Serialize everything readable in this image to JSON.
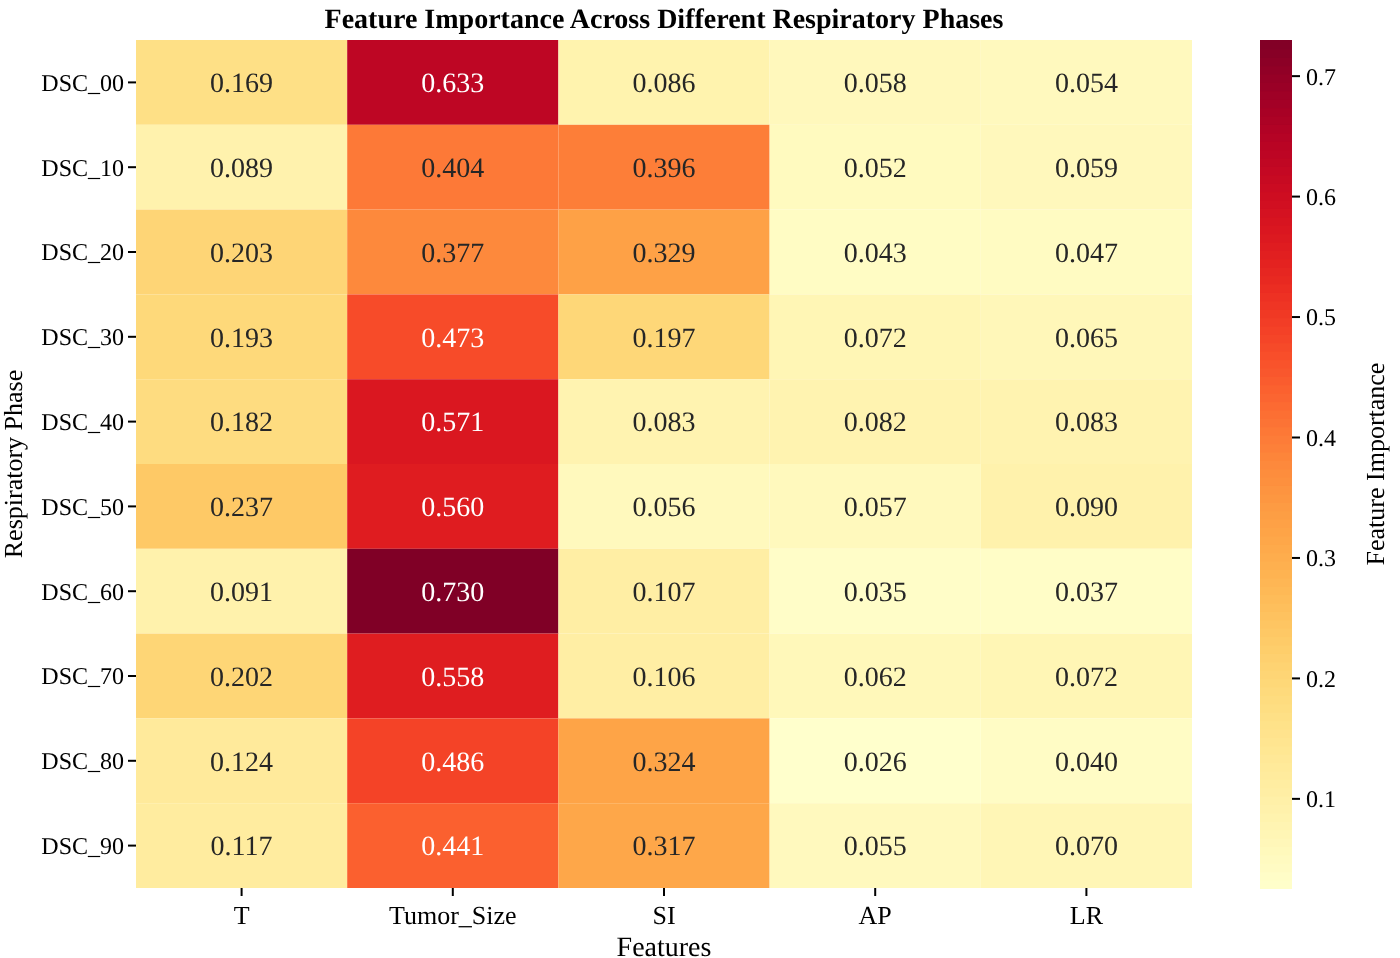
{
  "chart_data": {
    "type": "heatmap",
    "title": "Feature Importance Across Different Respiratory Phases",
    "xlabel": "Features",
    "ylabel": "Respiratory Phase",
    "clabel": "Feature Importance",
    "categories": [
      "T",
      "Tumor_Size",
      "SI",
      "AP",
      "LR"
    ],
    "y_categories": [
      "DSC_00",
      "DSC_10",
      "DSC_20",
      "DSC_30",
      "DSC_40",
      "DSC_50",
      "DSC_60",
      "DSC_70",
      "DSC_80",
      "DSC_90"
    ],
    "cells": [
      [
        0.169,
        0.633,
        0.086,
        0.058,
        0.054
      ],
      [
        0.089,
        0.404,
        0.396,
        0.052,
        0.059
      ],
      [
        0.203,
        0.377,
        0.329,
        0.043,
        0.047
      ],
      [
        0.193,
        0.473,
        0.197,
        0.072,
        0.065
      ],
      [
        0.182,
        0.571,
        0.083,
        0.082,
        0.083
      ],
      [
        0.237,
        0.56,
        0.056,
        0.057,
        0.09
      ],
      [
        0.091,
        0.73,
        0.107,
        0.035,
        0.037
      ],
      [
        0.202,
        0.558,
        0.106,
        0.062,
        0.072
      ],
      [
        0.124,
        0.486,
        0.324,
        0.026,
        0.04
      ],
      [
        0.117,
        0.441,
        0.317,
        0.055,
        0.07
      ]
    ],
    "cell_labels": [
      [
        "0.169",
        "0.633",
        "0.086",
        "0.058",
        "0.054"
      ],
      [
        "0.089",
        "0.404",
        "0.396",
        "0.052",
        "0.059"
      ],
      [
        "0.203",
        "0.377",
        "0.329",
        "0.043",
        "0.047"
      ],
      [
        "0.193",
        "0.473",
        "0.197",
        "0.072",
        "0.065"
      ],
      [
        "0.182",
        "0.571",
        "0.083",
        "0.082",
        "0.083"
      ],
      [
        "0.237",
        "0.560",
        "0.056",
        "0.057",
        "0.090"
      ],
      [
        "0.091",
        "0.730",
        "0.107",
        "0.035",
        "0.037"
      ],
      [
        "0.202",
        "0.558",
        "0.106",
        "0.062",
        "0.072"
      ],
      [
        "0.124",
        "0.486",
        "0.324",
        "0.026",
        "0.040"
      ],
      [
        "0.117",
        "0.441",
        "0.317",
        "0.055",
        "0.070"
      ]
    ],
    "clim": [
      0.026,
      0.73
    ],
    "cticks": [
      0.1,
      0.2,
      0.3,
      0.4,
      0.5,
      0.6,
      0.7
    ]
  }
}
